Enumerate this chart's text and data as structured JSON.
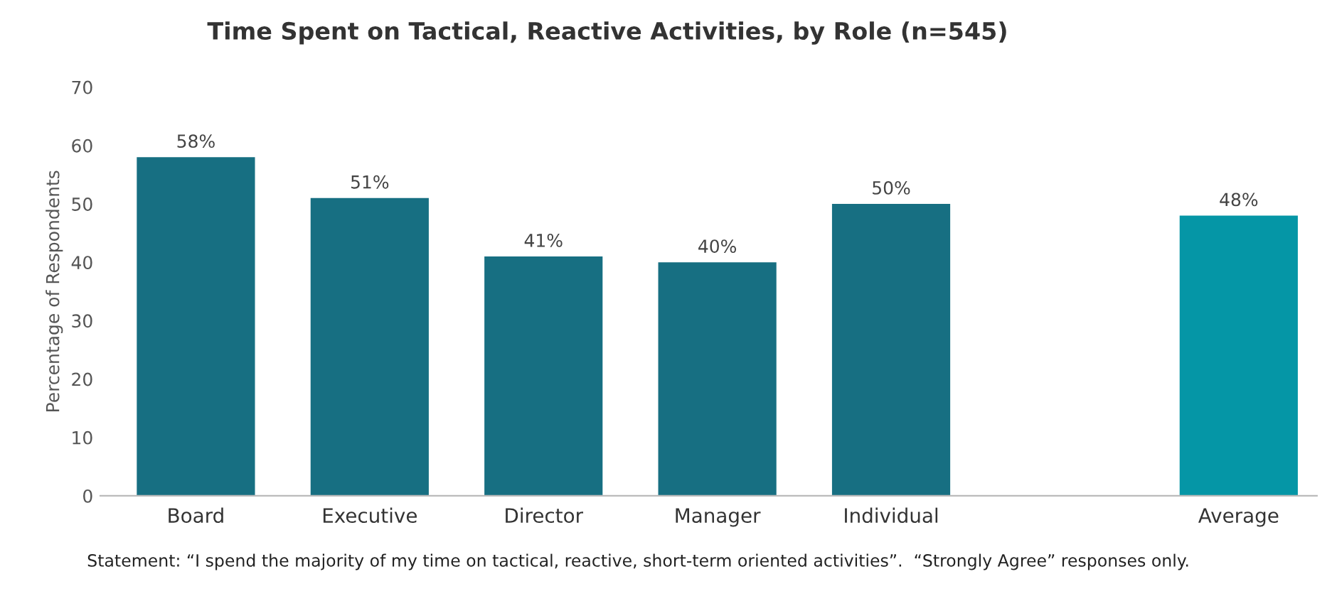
{
  "chart_data": {
    "type": "bar",
    "title": "Time Spent on Tactical, Reactive Activities, by Role (n=545)",
    "ylabel": "Percentage of Respondents",
    "categories": [
      "Board",
      "Executive",
      "Director",
      "Manager",
      "Individual",
      null,
      "Average"
    ],
    "values": [
      58,
      51,
      41,
      40,
      50,
      null,
      48
    ],
    "colors": [
      "#176f82",
      "#176f82",
      "#176f82",
      "#176f82",
      "#176f82",
      "#176f82",
      "#0596a6"
    ],
    "value_labels": [
      "58%",
      "51%",
      "41%",
      "40%",
      "50%",
      null,
      "48%"
    ],
    "ylim": [
      0,
      70
    ],
    "yticks": [
      0,
      10,
      20,
      30,
      40,
      50,
      60,
      70
    ],
    "grid": false,
    "annotations": [
      "Statement: “I spend the majority of my time on tactical, reactive, short-term oriented activities”.  “Strongly Agree” responses only."
    ]
  }
}
